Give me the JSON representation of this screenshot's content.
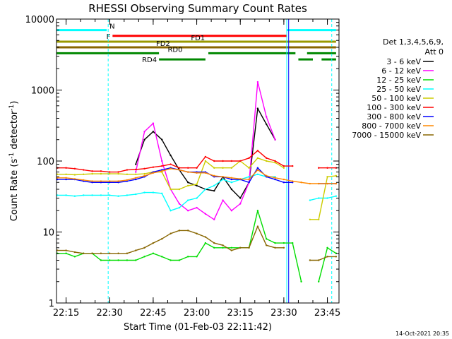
{
  "chart_data": {
    "type": "line",
    "title": "RHESSI Observing Summary Count Rates",
    "xlabel": "Start Time (01-Feb-03 22:11:42)",
    "ylabel": "Count Rate (s⁻¹ detector⁻¹)",
    "ylabel_parts": {
      "main": "Count Rate (s",
      "sup1": "-1",
      "mid": " detector",
      "sup2": "-1",
      "end": ")"
    },
    "y_scale": "log",
    "ylim": [
      1,
      10000
    ],
    "y_ticks": [
      {
        "value": 1,
        "label": "1"
      },
      {
        "value": 10,
        "label": "10"
      },
      {
        "value": 100,
        "label": "100"
      },
      {
        "value": 1000,
        "label": "1000"
      },
      {
        "value": 10000,
        "label": "10000"
      }
    ],
    "xlim": [
      "22:11:42",
      "23:49:00"
    ],
    "x_ticks": [
      {
        "time": "22:15",
        "label": "22:15"
      },
      {
        "time": "22:30",
        "label": "22:30"
      },
      {
        "time": "22:45",
        "label": "22:45"
      },
      {
        "time": "23:00",
        "label": "23:00"
      },
      {
        "time": "23:15",
        "label": "23:15"
      },
      {
        "time": "23:30",
        "label": "23:30"
      },
      {
        "time": "23:45",
        "label": "23:45"
      }
    ],
    "footer_date": "14-Oct-2021 20:35",
    "legend": {
      "position": "right",
      "header": [
        "Det 1,3,4,5,6,9,",
        "Att 0"
      ]
    },
    "x": [
      "22:12",
      "22:15",
      "22:18",
      "22:21",
      "22:24",
      "22:27",
      "22:30",
      "22:33",
      "22:36",
      "22:39",
      "22:42",
      "22:45",
      "22:48",
      "22:51",
      "22:54",
      "22:57",
      "23:00",
      "23:03",
      "23:06",
      "23:09",
      "23:12",
      "23:15",
      "23:18",
      "23:21",
      "23:24",
      "23:27",
      "23:30",
      "23:33",
      "23:36",
      "23:39",
      "23:42",
      "23:45",
      "23:48"
    ],
    "series": [
      {
        "name": "3 - 6 keV",
        "color": "#000000",
        "values": [
          null,
          null,
          null,
          null,
          null,
          null,
          null,
          null,
          null,
          90,
          200,
          260,
          200,
          120,
          75,
          50,
          45,
          40,
          38,
          60,
          40,
          30,
          50,
          550,
          330,
          200,
          null,
          null,
          null,
          null,
          null,
          null,
          null
        ]
      },
      {
        "name": "6 - 12 keV",
        "color": "#ff00ff",
        "values": [
          null,
          null,
          null,
          null,
          null,
          null,
          null,
          null,
          null,
          70,
          260,
          340,
          100,
          40,
          25,
          20,
          22,
          18,
          15,
          28,
          20,
          25,
          50,
          1300,
          420,
          200,
          null,
          null,
          null,
          null,
          null,
          null,
          null
        ]
      },
      {
        "name": "12 - 25 keV",
        "color": "#00dd00",
        "values": [
          5,
          5,
          4.5,
          5,
          5,
          4,
          4,
          4,
          4,
          4,
          4.5,
          5,
          4.5,
          4,
          4,
          4.5,
          4.5,
          7,
          6,
          6,
          6,
          6,
          6,
          20,
          8,
          7,
          7,
          7,
          2,
          null,
          2,
          6,
          5
        ]
      },
      {
        "name": "25 - 50 keV",
        "color": "#00ffff",
        "values": [
          33,
          33,
          32,
          33,
          33,
          33,
          33,
          32,
          33,
          34,
          36,
          36,
          35,
          20,
          22,
          28,
          30,
          40,
          45,
          55,
          50,
          55,
          60,
          65,
          60,
          60,
          null,
          null,
          null,
          28,
          30,
          30,
          32
        ]
      },
      {
        "name": "50 - 100 keV",
        "color": "#cccc00",
        "values": [
          65,
          65,
          64,
          65,
          66,
          66,
          66,
          66,
          65,
          65,
          66,
          70,
          70,
          40,
          40,
          45,
          47,
          100,
          80,
          80,
          80,
          100,
          80,
          110,
          100,
          95,
          80,
          null,
          null,
          15,
          15,
          60,
          62
        ]
      },
      {
        "name": "100 - 300 keV",
        "color": "#ff0000",
        "values": [
          80,
          80,
          78,
          75,
          72,
          72,
          70,
          70,
          75,
          76,
          78,
          82,
          85,
          90,
          80,
          80,
          80,
          115,
          100,
          100,
          100,
          100,
          110,
          140,
          110,
          100,
          85,
          85,
          null,
          null,
          80,
          80,
          80
        ]
      },
      {
        "name": "300 - 800 keV",
        "color": "#0000ff",
        "values": [
          55,
          55,
          55,
          52,
          50,
          50,
          50,
          50,
          52,
          55,
          60,
          70,
          75,
          80,
          75,
          70,
          70,
          70,
          60,
          60,
          55,
          55,
          50,
          80,
          60,
          55,
          50,
          50,
          null,
          null,
          48,
          48,
          48
        ]
      },
      {
        "name": "800 - 7000 keV",
        "color": "#ff8800",
        "values": [
          58,
          58,
          56,
          54,
          52,
          52,
          52,
          52,
          54,
          58,
          62,
          68,
          72,
          78,
          75,
          70,
          68,
          68,
          62,
          60,
          58,
          56,
          55,
          75,
          62,
          58,
          55,
          52,
          50,
          48,
          48,
          48,
          48
        ]
      },
      {
        "name": "7000 - 15000 keV",
        "color": "#886600",
        "values": [
          5.5,
          5.5,
          5.2,
          5,
          5,
          5,
          5,
          5,
          5,
          5.5,
          6,
          7,
          8,
          9.5,
          10.5,
          10.5,
          9.5,
          8.5,
          7,
          6.5,
          5.5,
          6,
          6,
          12,
          6.5,
          6,
          6,
          null,
          null,
          4,
          4,
          4.5,
          4.5
        ]
      }
    ],
    "flags": [
      {
        "label": "N",
        "color": "#00ffff",
        "y_value": 7000,
        "segments": [
          [
            "22:11:42",
            "22:29:00"
          ],
          [
            "23:31:00",
            "23:48:00"
          ]
        ]
      },
      {
        "label": "F",
        "color": "#ff0000",
        "y_value": 5800,
        "segments": [
          [
            "22:31:00",
            "23:31:00"
          ]
        ]
      },
      {
        "label": "FD1",
        "color": "#999900",
        "y_value": 4800,
        "segments": [
          [
            "22:11:42",
            "23:48:00"
          ]
        ]
      },
      {
        "label": "FD2",
        "color": "#886600",
        "y_value": 4000,
        "segments": [
          [
            "22:11:42",
            "23:48:00"
          ]
        ]
      },
      {
        "label": "RD0",
        "color": "#008800",
        "y_value": 3300,
        "segments": [
          [
            "22:11:42",
            "22:47:00"
          ],
          [
            "23:04:00",
            "23:34:00"
          ],
          [
            "23:38:00",
            "23:48:00"
          ]
        ]
      },
      {
        "label": "RD4",
        "color": "#008800",
        "y_value": 2700,
        "segments": [
          [
            "22:47:00",
            "23:03:00"
          ],
          [
            "23:35:00",
            "23:40:00"
          ],
          [
            "23:43:00",
            "23:48:00"
          ]
        ]
      }
    ],
    "markers": [
      {
        "time": "22:29:30",
        "color": "#00ffff",
        "style": "dashed"
      },
      {
        "time": "23:31:00",
        "color": "#00ffff",
        "style": "solid"
      },
      {
        "time": "23:31:40",
        "color": "#0000ff",
        "style": "solid"
      },
      {
        "time": "23:46:30",
        "color": "#00ffff",
        "style": "dashed"
      }
    ]
  }
}
